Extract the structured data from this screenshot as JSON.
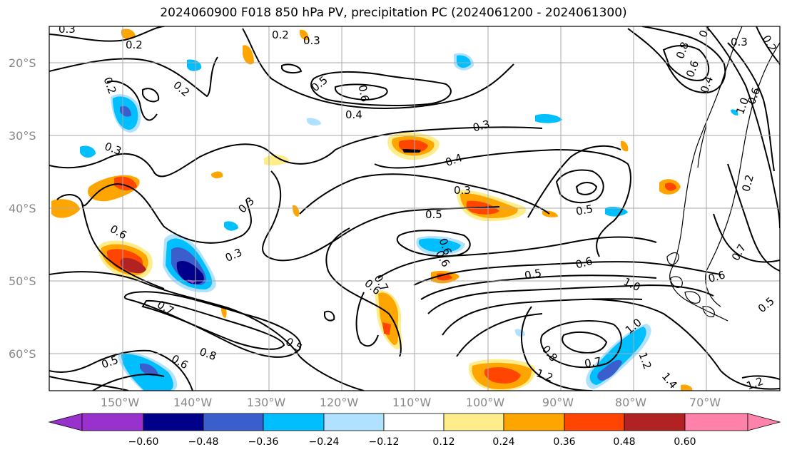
{
  "title": "2024060900 F018 850 hPa PV, precipitation PC (2024061200 - 2024061300)",
  "lat_labels": [
    "20°S",
    "30°S",
    "40°S",
    "50°S",
    "60°S"
  ],
  "lon_labels": [
    "150°W",
    "140°W",
    "130°W",
    "120°W",
    "110°W",
    "100°W",
    "90°W",
    "80°W",
    "70°W"
  ],
  "contour_labels": [
    "0.3",
    "0.2",
    "0.2",
    "0.3",
    "0.2",
    "0.2",
    "0.5",
    "0.6",
    "0.4",
    "0.3",
    "0.4",
    "0.3",
    "0.3",
    "0.3",
    "0.5",
    "0.5",
    "0.6",
    "0.3",
    "0.6",
    "0.6",
    "0.6",
    "0.5",
    "0.6",
    "0.7",
    "0.8",
    "0.6",
    "0.5",
    "0.5",
    "1.0",
    "0.8",
    "0.7",
    "1.2",
    "1.0",
    "1.2",
    "1.4",
    "0.6",
    "0.7",
    "0.5",
    "0.4",
    "0.6",
    "0.8",
    "0.2",
    "0.3",
    "0.2",
    "1.0",
    "0.6",
    "0.7",
    "1.2",
    "0.8"
  ],
  "colorbar": {
    "ticks": [
      "−0.60",
      "−0.48",
      "−0.36",
      "−0.24",
      "−0.12",
      "0.12",
      "0.24",
      "0.36",
      "0.48",
      "0.60"
    ],
    "colors": [
      "#9932cc",
      "#00008b",
      "#3a5fcd",
      "#00bfff",
      "#b0e2ff",
      "#ffffff",
      "#ffec8b",
      "#ffa500",
      "#ff4500",
      "#b22222",
      "#ff82ab"
    ]
  },
  "colors": {
    "grid": "#aaaaaa",
    "contour": "#000000",
    "coast": "#000000"
  }
}
